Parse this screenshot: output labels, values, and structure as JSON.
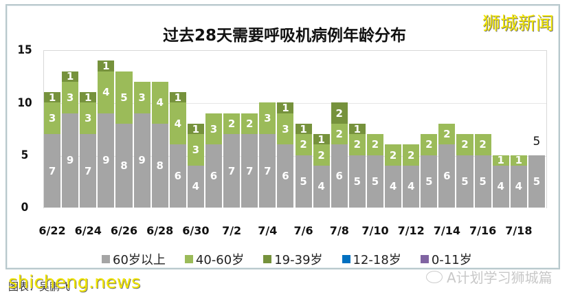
{
  "title": "过去28天需要呼吸机病例年龄分布",
  "watermark_top": "狮城新闻",
  "watermark_bottom": "shicheng.news",
  "source_text": "图表：吴鹏飞",
  "wechat_caption": "A计划学习狮城篇",
  "colors": {
    "60_plus": "#a5a5a5",
    "40_60": "#9bbb59",
    "19_39": "#76923c",
    "12_18": "#0070c0",
    "0_11": "#8064a2"
  },
  "legend": [
    {
      "label": "60岁以上",
      "color": "#a5a5a5"
    },
    {
      "label": "40-60岁",
      "color": "#9bbb59"
    },
    {
      "label": "19-39岁",
      "color": "#76923c"
    },
    {
      "label": "12-18岁",
      "color": "#0070c0"
    },
    {
      "label": "0-11岁",
      "color": "#8064a2"
    }
  ],
  "y_ticks": [
    "0",
    "5",
    "10",
    "15"
  ],
  "x_tick_labels": [
    "6/22",
    "6/24",
    "6/26",
    "6/28",
    "6/30",
    "7/2",
    "7/4",
    "7/6",
    "7/8",
    "7/10",
    "7/12",
    "7/14",
    "7/16",
    "7/18"
  ],
  "last_bar_total_label": "5",
  "chart_data": {
    "type": "bar",
    "stacked": true,
    "title": "过去28天需要呼吸机病例年龄分布",
    "xlabel": "",
    "ylabel": "",
    "ylim": [
      0,
      15
    ],
    "y_ticks": [
      0,
      5,
      10,
      15
    ],
    "grid": true,
    "legend_position": "bottom",
    "categories": [
      "6/22",
      "6/23",
      "6/24",
      "6/25",
      "6/26",
      "6/27",
      "6/28",
      "6/29",
      "6/30",
      "7/1",
      "7/2",
      "7/3",
      "7/4",
      "7/5",
      "7/6",
      "7/7",
      "7/8",
      "7/9",
      "7/10",
      "7/11",
      "7/12",
      "7/13",
      "7/14",
      "7/15",
      "7/16",
      "7/17",
      "7/18",
      "7/19"
    ],
    "series": [
      {
        "name": "60岁以上",
        "color": "#a5a5a5",
        "values": [
          7,
          9,
          7,
          9,
          8,
          9,
          8,
          6,
          4,
          6,
          7,
          7,
          7,
          6,
          5,
          4,
          6,
          5,
          5,
          4,
          4,
          5,
          6,
          5,
          5,
          4,
          4,
          5
        ]
      },
      {
        "name": "40-60岁",
        "color": "#9bbb59",
        "values": [
          3,
          3,
          3,
          4,
          5,
          3,
          4,
          4,
          3,
          3,
          2,
          2,
          3,
          3,
          2,
          2,
          2,
          2,
          2,
          2,
          2,
          2,
          2,
          2,
          2,
          1,
          1,
          0
        ]
      },
      {
        "name": "19-39岁",
        "color": "#76923c",
        "values": [
          1,
          1,
          1,
          1,
          0,
          0,
          0,
          1,
          1,
          0,
          0,
          0,
          0,
          1,
          1,
          1,
          2,
          1,
          0,
          0,
          0,
          0,
          0,
          0,
          0,
          0,
          0,
          0
        ]
      },
      {
        "name": "12-18岁",
        "color": "#0070c0",
        "values": [
          0,
          0,
          0,
          0,
          0,
          0,
          0,
          0,
          0,
          0,
          0,
          0,
          0,
          0,
          0,
          0,
          0,
          0,
          0,
          0,
          0,
          0,
          0,
          0,
          0,
          0,
          0,
          0
        ]
      },
      {
        "name": "0-11岁",
        "color": "#8064a2",
        "values": [
          0,
          0,
          0,
          0,
          0,
          0,
          0,
          0,
          0,
          0,
          0,
          0,
          0,
          0,
          0,
          0,
          0,
          0,
          0,
          0,
          0,
          0,
          0,
          0,
          0,
          0,
          0,
          0
        ]
      }
    ],
    "annotations": [
      {
        "category": "7/19",
        "text": "5"
      }
    ]
  }
}
